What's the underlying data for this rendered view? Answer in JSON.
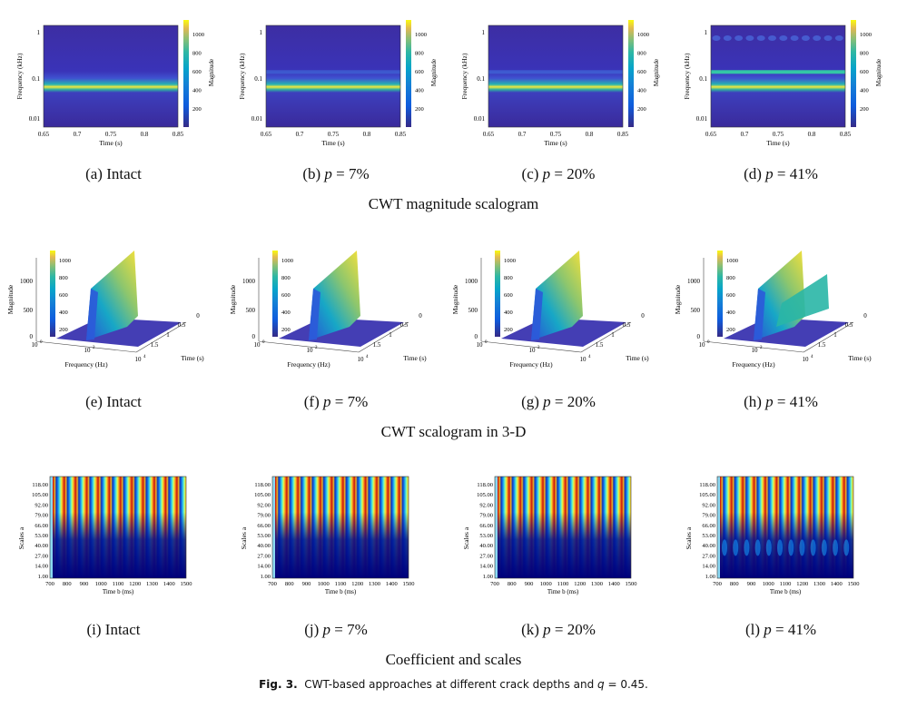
{
  "row1": {
    "title": "CWT magnitude scalogram",
    "panels": [
      {
        "caption_prefix": "(a) Intact",
        "p": ""
      },
      {
        "caption_prefix": "(b) ",
        "p": "7%"
      },
      {
        "caption_prefix": "(c) ",
        "p": "20%"
      },
      {
        "caption_prefix": "(d) ",
        "p": "41%"
      }
    ],
    "xlabel": "Time (s)",
    "ylabel": "Frequency (kHz)",
    "cbar_label": "Magnitude",
    "xticks": [
      "0.65",
      "0.7",
      "0.75",
      "0.8",
      "0.85"
    ],
    "yticks": [
      "1",
      "0.1",
      "0.01"
    ],
    "cbar_ticks": [
      "1000",
      "800",
      "600",
      "400",
      "200"
    ],
    "colors": {
      "bg": "#3b2aa6",
      "band": "#f5e93a",
      "mid": "#1fb5b0"
    }
  },
  "row2": {
    "title": "CWT scalogram in 3-D",
    "panels": [
      {
        "caption_prefix": "(e) Intact",
        "p": ""
      },
      {
        "caption_prefix": "(f) ",
        "p": "7%"
      },
      {
        "caption_prefix": "(g) ",
        "p": "20%"
      },
      {
        "caption_prefix": "(h) ",
        "p": "41%"
      }
    ],
    "zlabel": "Magnitude",
    "xlabel": "Frequency (Hz)",
    "ylabel": "Time (s)",
    "zticks": [
      "1000",
      "500",
      "0"
    ],
    "xticks": [
      "10",
      "10",
      "10"
    ],
    "xtick_exp": [
      "0",
      "2",
      "4"
    ],
    "yticks": [
      "0",
      "0.5",
      "1",
      "1.5"
    ],
    "cbar_ticks": [
      "1000",
      "800",
      "600",
      "400",
      "200"
    ]
  },
  "row3": {
    "title": "Coefficient and scales",
    "panels": [
      {
        "caption_prefix": "(i) Intact",
        "p": ""
      },
      {
        "caption_prefix": "(j) ",
        "p": "7%"
      },
      {
        "caption_prefix": "(k) ",
        "p": "20%"
      },
      {
        "caption_prefix": "(l) ",
        "p": "41%"
      }
    ],
    "xlabel": "Time b (ms)",
    "ylabel": "Scales a",
    "yticks": [
      "118.00",
      "105.00",
      "92.00",
      "79.00",
      "66.00",
      "53.00",
      "40.00",
      "27.00",
      "14.00",
      "1.00"
    ],
    "xticks": [
      "700",
      "800",
      "900",
      "1000",
      "1100",
      "1200",
      "1300",
      "1400",
      "1500"
    ]
  },
  "caption": {
    "label": "Fig. 3.",
    "text": "CWT-based approaches at different crack depths and ",
    "q": "q",
    "qval": " = 0.45."
  },
  "p_symbol": "p",
  "eq": " = "
}
